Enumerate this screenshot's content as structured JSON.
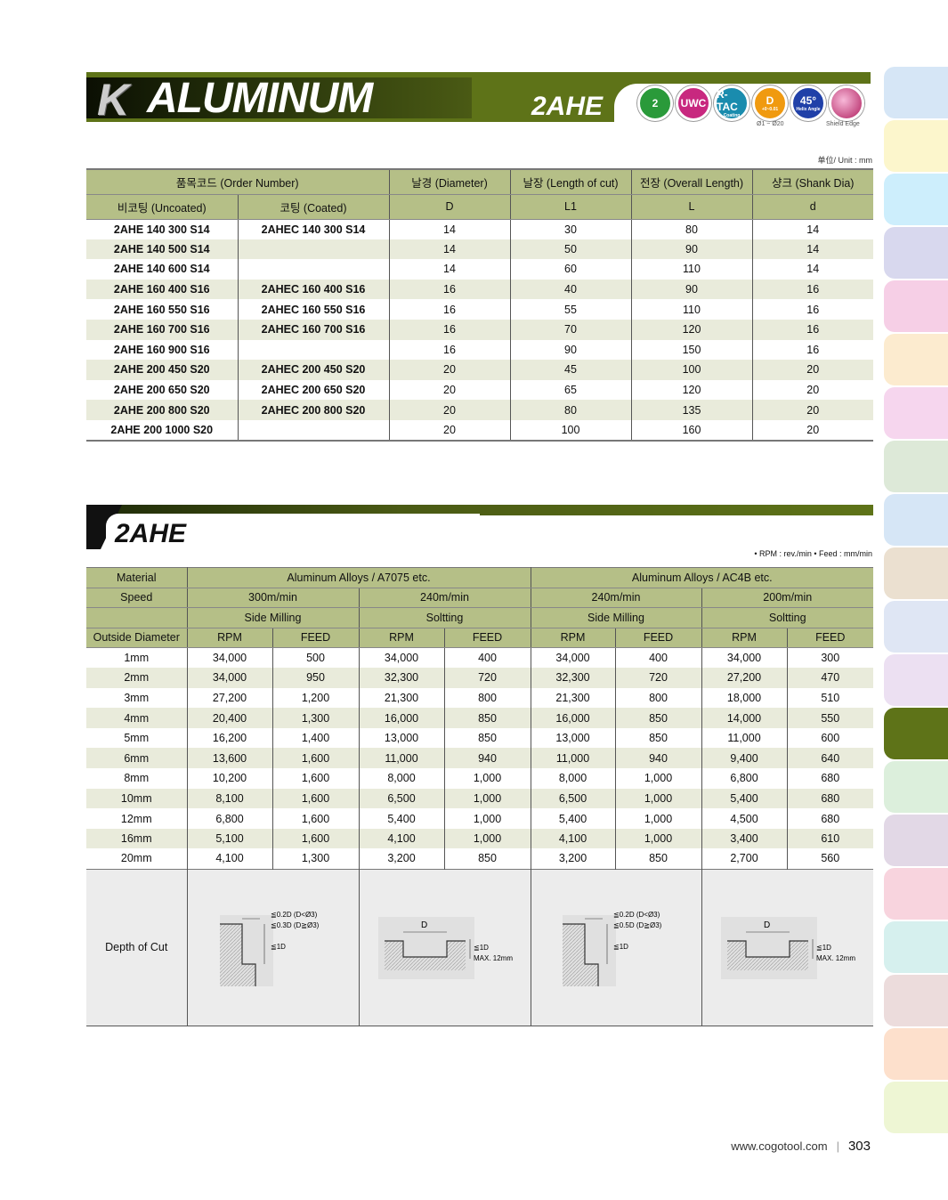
{
  "header": {
    "category_letter": "K",
    "category": "ALUMINUM",
    "model": "2AHE",
    "badges": [
      {
        "icon": "2-flute-icon",
        "label": "2",
        "color": "#2a9a3a"
      },
      {
        "icon": "uwc-icon",
        "label": "UWC",
        "color": "#c8287f"
      },
      {
        "icon": "r-tac-coating-icon",
        "label": "R-TAC",
        "sub": "Coating",
        "color": "#1a8cae"
      },
      {
        "icon": "tolerance-icon",
        "label": "D",
        "sub": "+0~0.01",
        "caption": "Ø1 ~ Ø20",
        "color": "#f09a10"
      },
      {
        "icon": "helix-45-icon",
        "label": "45°",
        "sub": "Helix Angle",
        "color": "#2040a8"
      },
      {
        "icon": "shield-edge-icon",
        "label": "",
        "caption": "Shield Edge",
        "color": "#c0306a"
      }
    ]
  },
  "unit_note": "单位/ Unit : mm",
  "spec_table": {
    "headers": [
      "품목코드 (Order Number)",
      "날경 (Diameter)",
      "날장 (Length of cut)",
      "전장 (Overall Length)",
      "샹크 (Shank Dia)"
    ],
    "subheaders": [
      "비코팅 (Uncoated)",
      "코팅 (Coated)",
      "D",
      "L1",
      "L",
      "d"
    ],
    "rows": [
      [
        "2AHE 140 300 S14",
        "2AHEC 140 300 S14",
        "14",
        "30",
        "80",
        "14"
      ],
      [
        "2AHE 140 500 S14",
        "",
        "14",
        "50",
        "90",
        "14"
      ],
      [
        "2AHE 140 600 S14",
        "",
        "14",
        "60",
        "110",
        "14"
      ],
      [
        "2AHE 160 400 S16",
        "2AHEC 160 400 S16",
        "16",
        "40",
        "90",
        "16"
      ],
      [
        "2AHE 160 550 S16",
        "2AHEC 160 550 S16",
        "16",
        "55",
        "110",
        "16"
      ],
      [
        "2AHE 160 700 S16",
        "2AHEC 160 700 S16",
        "16",
        "70",
        "120",
        "16"
      ],
      [
        "2AHE 160 900 S16",
        "",
        "16",
        "90",
        "150",
        "16"
      ],
      [
        "2AHE 200 450 S20",
        "2AHEC 200 450 S20",
        "20",
        "45",
        "100",
        "20"
      ],
      [
        "2AHE 200 650 S20",
        "2AHEC 200 650 S20",
        "20",
        "65",
        "120",
        "20"
      ],
      [
        "2AHE 200 800 S20",
        "2AHEC 200 800 S20",
        "20",
        "80",
        "135",
        "20"
      ],
      [
        "2AHE 200 1000 S20",
        "",
        "20",
        "100",
        "160",
        "20"
      ]
    ]
  },
  "section2": {
    "title": "2AHE",
    "legend": "• RPM : rev./min  • Feed : mm/min"
  },
  "cond_table": {
    "material_label": "Material",
    "materials": [
      "Aluminum Alloys / A7075 etc.",
      "Aluminum Alloys / AC4B etc."
    ],
    "speed_label": "Speed",
    "speeds": [
      "300m/min",
      "240m/min",
      "240m/min",
      "200m/min"
    ],
    "operations": [
      "Side Milling",
      "Soltting",
      "Side Milling",
      "Soltting"
    ],
    "od_label": "Outside Diameter",
    "col_labels": [
      "RPM",
      "FEED",
      "RPM",
      "FEED",
      "RPM",
      "FEED",
      "RPM",
      "FEED"
    ],
    "rows": [
      [
        "1mm",
        "34,000",
        "500",
        "34,000",
        "400",
        "34,000",
        "400",
        "34,000",
        "300"
      ],
      [
        "2mm",
        "34,000",
        "950",
        "32,300",
        "720",
        "32,300",
        "720",
        "27,200",
        "470"
      ],
      [
        "3mm",
        "27,200",
        "1,200",
        "21,300",
        "800",
        "21,300",
        "800",
        "18,000",
        "510"
      ],
      [
        "4mm",
        "20,400",
        "1,300",
        "16,000",
        "850",
        "16,000",
        "850",
        "14,000",
        "550"
      ],
      [
        "5mm",
        "16,200",
        "1,400",
        "13,000",
        "850",
        "13,000",
        "850",
        "11,000",
        "600"
      ],
      [
        "6mm",
        "13,600",
        "1,600",
        "11,000",
        "940",
        "11,000",
        "940",
        "9,400",
        "640"
      ],
      [
        "8mm",
        "10,200",
        "1,600",
        "8,000",
        "1,000",
        "8,000",
        "1,000",
        "6,800",
        "680"
      ],
      [
        "10mm",
        "8,100",
        "1,600",
        "6,500",
        "1,000",
        "6,500",
        "1,000",
        "5,400",
        "680"
      ],
      [
        "12mm",
        "6,800",
        "1,600",
        "5,400",
        "1,000",
        "5,400",
        "1,000",
        "4,500",
        "680"
      ],
      [
        "16mm",
        "5,100",
        "1,600",
        "4,100",
        "1,000",
        "4,100",
        "1,000",
        "3,400",
        "610"
      ],
      [
        "20mm",
        "4,100",
        "1,300",
        "3,200",
        "850",
        "3,200",
        "850",
        "2,700",
        "560"
      ]
    ],
    "depth_label": "Depth of Cut",
    "diagrams": [
      {
        "type": "side",
        "l1": "≦0.2D (D<Ø3)",
        "l2": "≦0.3D (D≧Ø3)",
        "l3": "≦1D"
      },
      {
        "type": "slot",
        "d": "D",
        "l1": "≦1D",
        "l2": "MAX. 12mm"
      },
      {
        "type": "side",
        "l1": "≦0.2D (D<Ø3)",
        "l2": "≦0.5D (D≧Ø3)",
        "l3": "≦1D"
      },
      {
        "type": "slot",
        "d": "D",
        "l1": "≦1D",
        "l2": "MAX. 12mm"
      }
    ]
  },
  "side_tabs": {
    "active_index": 12,
    "colors": [
      "#d6e6f6",
      "#fcf6cc",
      "#cdeefc",
      "#d8d8ee",
      "#f6cfe6",
      "#fcebcf",
      "#f6d6ee",
      "#dde9d8",
      "#d6e6f6",
      "#ebe0d0",
      "#dfe6f4",
      "#ece0f2",
      "#5e7318",
      "#dcefdc",
      "#e2d8e6",
      "#f8d4de",
      "#d6f0ee",
      "#ecdcdc",
      "#fde0cc",
      "#eef6d4"
    ]
  },
  "footer": {
    "url": "www.cogotool.com",
    "page": "303"
  }
}
